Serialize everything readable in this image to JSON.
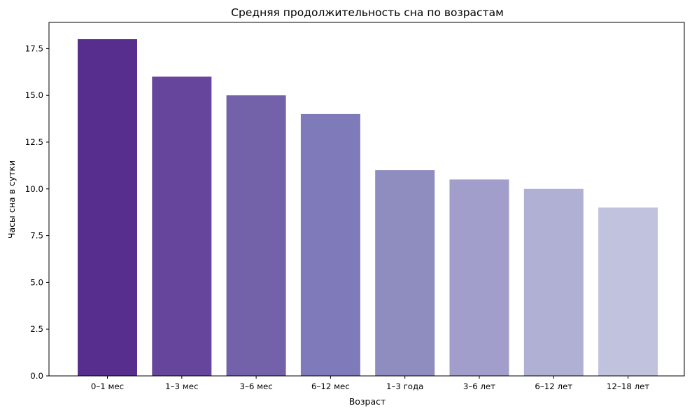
{
  "chart_data": {
    "type": "bar",
    "title": "Средняя продолжительность сна по возрастам",
    "xlabel": "Возраст",
    "ylabel": "Часы сна в сутки",
    "categories": [
      "0–1 мес",
      "1–3 мес",
      "3–6 мес",
      "6–12 мес",
      "1–3 года",
      "3–6 лет",
      "6–12 лет",
      "12–18 лет"
    ],
    "values": [
      18,
      16,
      15,
      14,
      11,
      10.5,
      10,
      9
    ],
    "colors": [
      "#572e8e",
      "#65469c",
      "#7361aa",
      "#7f7ab9",
      "#8f8cbf",
      "#a19ecb",
      "#b0afd4",
      "#c1c2de"
    ],
    "ylim": [
      0,
      18.9
    ],
    "yticks": [
      0,
      2.5,
      5,
      7.5,
      10,
      12.5,
      15,
      17.5
    ],
    "ytick_labels": [
      "0.0",
      "2.5",
      "5.0",
      "7.5",
      "10.0",
      "12.5",
      "15.0",
      "17.5"
    ],
    "grid": false,
    "legend": "none"
  }
}
